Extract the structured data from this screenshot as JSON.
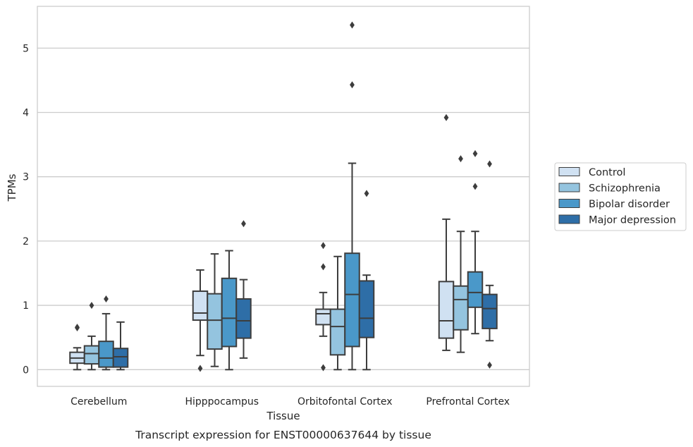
{
  "chart_data": {
    "type": "box",
    "title": "",
    "caption": "Transcript expression for ENST00000637644 by tissue",
    "xlabel": "Tissue",
    "ylabel": "TPMs",
    "ylim": [
      -0.26,
      5.65
    ],
    "yticks": [
      0,
      1,
      2,
      3,
      4,
      5
    ],
    "grid": "horizontal",
    "legend_position": "right",
    "categories": [
      "Cerebellum",
      "Hipppocampus",
      "Orbitofontal Cortex",
      "Prefrontal Cortex"
    ],
    "series": [
      {
        "name": "Control",
        "color": "#d0e1f2",
        "boxes": [
          {
            "whislo": 0.0,
            "q1": 0.1,
            "med": 0.18,
            "q3": 0.27,
            "whishi": 0.34,
            "fliers": [
              0.65,
              0.66
            ]
          },
          {
            "whislo": 0.22,
            "q1": 0.77,
            "med": 0.88,
            "q3": 1.22,
            "whishi": 1.55,
            "fliers": [
              0.02
            ]
          },
          {
            "whislo": 0.52,
            "q1": 0.7,
            "med": 0.87,
            "q3": 0.94,
            "whishi": 1.2,
            "fliers": [
              1.6,
              1.93,
              0.03
            ]
          },
          {
            "whislo": 0.3,
            "q1": 0.49,
            "med": 0.76,
            "q3": 1.37,
            "whishi": 2.34,
            "fliers": [
              3.92
            ]
          }
        ]
      },
      {
        "name": "Schizophrenia",
        "color": "#94c4df",
        "boxes": [
          {
            "whislo": 0.0,
            "q1": 0.09,
            "med": 0.25,
            "q3": 0.37,
            "whishi": 0.52,
            "fliers": [
              1.0
            ]
          },
          {
            "whislo": 0.05,
            "q1": 0.32,
            "med": 0.77,
            "q3": 1.18,
            "whishi": 1.8,
            "fliers": []
          },
          {
            "whislo": 0.0,
            "q1": 0.23,
            "med": 0.67,
            "q3": 0.94,
            "whishi": 1.76,
            "fliers": []
          },
          {
            "whislo": 0.27,
            "q1": 0.62,
            "med": 1.09,
            "q3": 1.3,
            "whishi": 2.15,
            "fliers": [
              3.28
            ]
          }
        ]
      },
      {
        "name": "Bipolar disorder",
        "color": "#4a98c9",
        "boxes": [
          {
            "whislo": 0.0,
            "q1": 0.04,
            "med": 0.18,
            "q3": 0.44,
            "whishi": 0.87,
            "fliers": [
              1.1
            ]
          },
          {
            "whislo": 0.0,
            "q1": 0.36,
            "med": 0.8,
            "q3": 1.42,
            "whishi": 1.85,
            "fliers": []
          },
          {
            "whislo": 0.0,
            "q1": 0.36,
            "med": 1.17,
            "q3": 1.81,
            "whishi": 3.21,
            "fliers": [
              4.43,
              5.36
            ]
          },
          {
            "whislo": 0.56,
            "q1": 0.97,
            "med": 1.2,
            "q3": 1.52,
            "whishi": 2.15,
            "fliers": [
              2.85,
              3.36
            ]
          }
        ]
      },
      {
        "name": "Major depression",
        "color": "#2e6ea7",
        "boxes": [
          {
            "whislo": 0.0,
            "q1": 0.04,
            "med": 0.2,
            "q3": 0.33,
            "whishi": 0.74,
            "fliers": []
          },
          {
            "whislo": 0.18,
            "q1": 0.49,
            "med": 0.76,
            "q3": 1.1,
            "whishi": 1.4,
            "fliers": [
              2.27
            ]
          },
          {
            "whislo": 0.0,
            "q1": 0.5,
            "med": 0.8,
            "q3": 1.38,
            "whishi": 1.47,
            "fliers": [
              2.74
            ]
          },
          {
            "whislo": 0.45,
            "q1": 0.64,
            "med": 0.95,
            "q3": 1.17,
            "whishi": 1.31,
            "fliers": [
              3.2,
              0.07
            ]
          }
        ]
      }
    ]
  }
}
